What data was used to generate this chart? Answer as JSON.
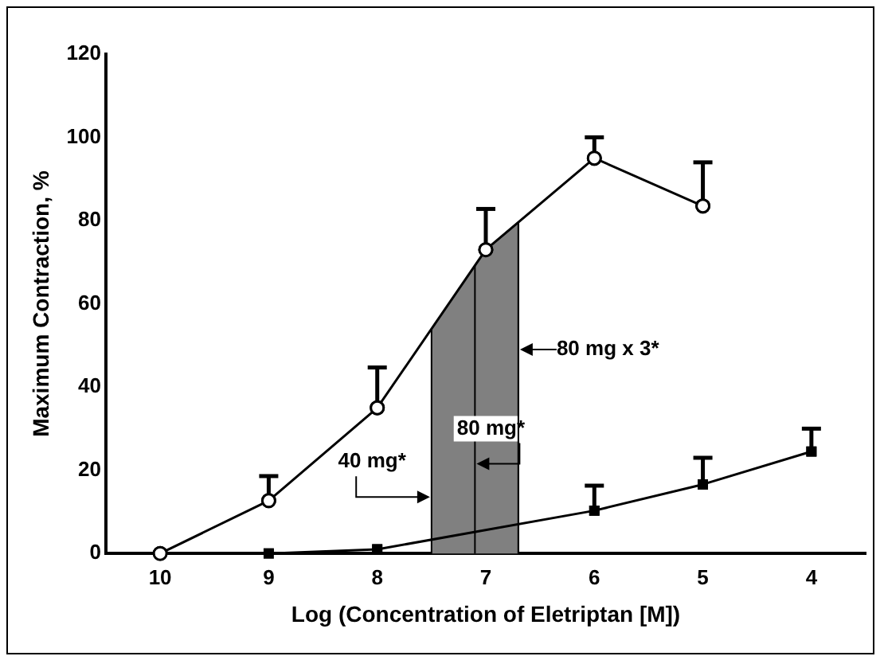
{
  "chart_data": {
    "type": "line",
    "xlabel": "Log (Concentration of Eletriptan [M])",
    "ylabel": "Maximum Contraction, %",
    "xlim": [
      10.5,
      3.5
    ],
    "xticks": [
      10,
      9,
      8,
      7,
      6,
      5,
      4
    ],
    "ylim": [
      0,
      120
    ],
    "yticks": [
      0,
      20,
      40,
      60,
      80,
      100,
      120
    ],
    "series": [
      {
        "color": "#000000",
        "marker": "circle",
        "values": [
          0,
          12.7,
          35,
          73,
          95,
          83.5
        ],
        "x": [
          10,
          9,
          8,
          7,
          6,
          5
        ],
        "errors": [
          null,
          [
            12.7,
            18.6
          ],
          [
            35,
            44.7
          ],
          [
            73,
            82.8
          ],
          [
            95,
            100
          ],
          [
            83.5,
            94
          ]
        ]
      },
      {
        "color": "#000000",
        "marker": "square",
        "values": [
          0,
          1,
          null,
          10.3,
          16.6,
          24.5
        ],
        "x": [
          9,
          8,
          7,
          6,
          5,
          4
        ],
        "errors": [
          null,
          null,
          null,
          [
            10.3,
            16.3
          ],
          [
            16.6,
            23
          ],
          [
            24.5,
            30
          ]
        ]
      }
    ],
    "bands": [
      {
        "axis": "x",
        "from": 7.5,
        "to": 6.7,
        "color": "#808080"
      }
    ],
    "ref_lines": [
      {
        "axis": "x",
        "value": 7.5,
        "label": "40 mg*"
      },
      {
        "axis": "x",
        "value": 7.1,
        "label": "80 mg*"
      },
      {
        "axis": "x",
        "value": 6.7,
        "label": "80 mg x 3*"
      }
    ],
    "grid": false,
    "legend": false
  }
}
